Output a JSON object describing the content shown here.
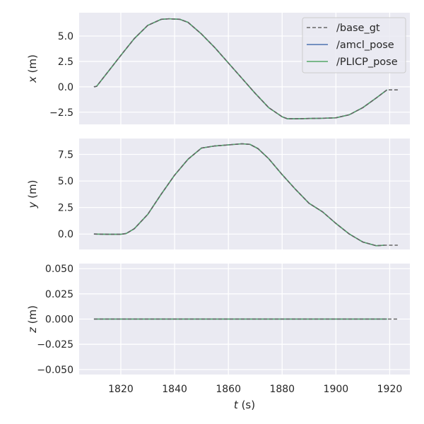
{
  "chart_data": [
    {
      "type": "line",
      "panel": "x",
      "ylabel_var": "x",
      "ylabel_unit": "(m)",
      "xlabel": "",
      "xlim": [
        1804.5,
        1927.5
      ],
      "ylim": [
        -3.7,
        7.3
      ],
      "yticks": [
        5.0,
        2.5,
        0.0,
        -2.5
      ],
      "ytick_labels": [
        "5.0",
        "2.5",
        "0.0",
        "−2.5"
      ],
      "xticks": [
        1820,
        1840,
        1860,
        1880,
        1900,
        1920
      ],
      "show_xtick_labels": false,
      "grid": true,
      "legend": {
        "location": "upper right"
      },
      "series": [
        {
          "name": "/base_gt",
          "color": "#666666",
          "dash": "dashed",
          "x": [
            1810,
            1811,
            1815,
            1820,
            1825,
            1830,
            1835,
            1838,
            1842,
            1845,
            1850,
            1855,
            1860,
            1865,
            1870,
            1875,
            1880,
            1882,
            1885,
            1890,
            1895,
            1900,
            1905,
            1910,
            1915,
            1919,
            1923
          ],
          "y": [
            0.0,
            0.05,
            1.4,
            3.1,
            4.75,
            6.05,
            6.65,
            6.7,
            6.65,
            6.35,
            5.2,
            3.85,
            2.35,
            0.85,
            -0.65,
            -2.05,
            -2.95,
            -3.15,
            -3.15,
            -3.12,
            -3.1,
            -3.05,
            -2.75,
            -2.05,
            -1.1,
            -0.3,
            -0.3
          ]
        },
        {
          "name": "/amcl_pose",
          "color": "#4c72b0",
          "dash": "solid",
          "x": [
            1810,
            1811,
            1815,
            1820,
            1825,
            1830,
            1835,
            1838,
            1842,
            1845,
            1850,
            1855,
            1860,
            1865,
            1870,
            1875,
            1880,
            1882,
            1885,
            1890,
            1895,
            1900,
            1905,
            1910,
            1915,
            1919
          ],
          "y": [
            0.0,
            0.05,
            1.4,
            3.1,
            4.75,
            6.05,
            6.65,
            6.7,
            6.65,
            6.35,
            5.2,
            3.85,
            2.35,
            0.85,
            -0.65,
            -2.05,
            -2.95,
            -3.15,
            -3.15,
            -3.12,
            -3.1,
            -3.05,
            -2.75,
            -2.05,
            -1.1,
            -0.3
          ]
        },
        {
          "name": "/PLICP_pose",
          "color": "#55a868",
          "dash": "solid",
          "x": [
            1810,
            1811,
            1815,
            1820,
            1825,
            1830,
            1835,
            1838,
            1842,
            1845,
            1850,
            1855,
            1860,
            1865,
            1870,
            1875,
            1880,
            1882,
            1885,
            1890,
            1895,
            1900,
            1905,
            1910,
            1915,
            1919
          ],
          "y": [
            0.0,
            0.05,
            1.4,
            3.1,
            4.75,
            6.05,
            6.65,
            6.7,
            6.65,
            6.35,
            5.2,
            3.85,
            2.35,
            0.85,
            -0.65,
            -2.05,
            -2.95,
            -3.15,
            -3.15,
            -3.12,
            -3.1,
            -3.05,
            -2.75,
            -2.05,
            -1.1,
            -0.3
          ]
        }
      ]
    },
    {
      "type": "line",
      "panel": "y",
      "ylabel_var": "y",
      "ylabel_unit": "(m)",
      "xlabel": "",
      "xlim": [
        1804.5,
        1927.5
      ],
      "ylim": [
        -1.45,
        9.0
      ],
      "yticks": [
        7.5,
        5.0,
        2.5,
        0.0
      ],
      "ytick_labels": [
        "7.5",
        "5.0",
        "2.5",
        "0.0"
      ],
      "xticks": [
        1820,
        1840,
        1860,
        1880,
        1900,
        1920
      ],
      "show_xtick_labels": false,
      "grid": true,
      "series": [
        {
          "name": "/base_gt",
          "color": "#666666",
          "dash": "dashed",
          "x": [
            1810,
            1815,
            1820,
            1822,
            1825,
            1830,
            1835,
            1840,
            1845,
            1850,
            1855,
            1860,
            1865,
            1868,
            1871,
            1875,
            1880,
            1885,
            1890,
            1895,
            1900,
            1905,
            1910,
            1915,
            1918,
            1923
          ],
          "y": [
            0.0,
            -0.02,
            -0.02,
            0.05,
            0.5,
            1.85,
            3.75,
            5.55,
            7.05,
            8.1,
            8.3,
            8.4,
            8.5,
            8.45,
            8.05,
            7.1,
            5.6,
            4.2,
            2.9,
            2.1,
            1.0,
            0.0,
            -0.75,
            -1.1,
            -1.05,
            -1.05
          ]
        },
        {
          "name": "/amcl_pose",
          "color": "#4c72b0",
          "dash": "solid",
          "x": [
            1810,
            1815,
            1820,
            1822,
            1825,
            1830,
            1835,
            1840,
            1845,
            1850,
            1855,
            1860,
            1865,
            1868,
            1871,
            1875,
            1880,
            1885,
            1890,
            1895,
            1900,
            1905,
            1910,
            1915,
            1918
          ],
          "y": [
            0.0,
            -0.02,
            -0.02,
            0.05,
            0.5,
            1.85,
            3.75,
            5.55,
            7.05,
            8.1,
            8.3,
            8.4,
            8.5,
            8.45,
            8.05,
            7.1,
            5.6,
            4.2,
            2.9,
            2.1,
            1.0,
            0.0,
            -0.75,
            -1.1,
            -1.05
          ]
        },
        {
          "name": "/PLICP_pose",
          "color": "#55a868",
          "dash": "solid",
          "x": [
            1810,
            1815,
            1820,
            1822,
            1825,
            1830,
            1835,
            1840,
            1845,
            1850,
            1855,
            1860,
            1865,
            1868,
            1871,
            1875,
            1880,
            1885,
            1890,
            1895,
            1900,
            1905,
            1910,
            1915,
            1918
          ],
          "y": [
            0.0,
            -0.02,
            -0.02,
            0.05,
            0.5,
            1.85,
            3.75,
            5.55,
            7.05,
            8.1,
            8.3,
            8.4,
            8.5,
            8.45,
            8.05,
            7.1,
            5.6,
            4.2,
            2.9,
            2.1,
            1.0,
            0.0,
            -0.75,
            -1.1,
            -1.05
          ]
        }
      ]
    },
    {
      "type": "line",
      "panel": "z",
      "ylabel_var": "z",
      "ylabel_unit": "(m)",
      "xlabel_var": "t",
      "xlabel_unit": "(s)",
      "xlim": [
        1804.5,
        1927.5
      ],
      "ylim": [
        -0.055,
        0.055
      ],
      "yticks": [
        0.05,
        0.025,
        0.0,
        -0.025,
        -0.05
      ],
      "ytick_labels": [
        "0.050",
        "0.025",
        "0.000",
        "−0.025",
        "−0.050"
      ],
      "xticks": [
        1820,
        1840,
        1860,
        1880,
        1900,
        1920
      ],
      "xtick_labels": [
        "1820",
        "1840",
        "1860",
        "1880",
        "1900",
        "1920"
      ],
      "show_xtick_labels": true,
      "grid": true,
      "series": [
        {
          "name": "/base_gt",
          "color": "#666666",
          "dash": "dashed",
          "x": [
            1810,
            1923
          ],
          "y": [
            0.0,
            0.0
          ]
        },
        {
          "name": "/amcl_pose",
          "color": "#4c72b0",
          "dash": "solid",
          "x": [
            1810,
            1919
          ],
          "y": [
            0.0,
            0.0
          ]
        },
        {
          "name": "/PLICP_pose",
          "color": "#55a868",
          "dash": "solid",
          "x": [
            1810,
            1919
          ],
          "y": [
            0.0,
            0.0
          ]
        }
      ]
    }
  ],
  "style": {
    "panel_background": "#eaeaf2",
    "grid_color": "#ffffff",
    "text_color": "#262626",
    "legend_background": "#eaeaf2",
    "legend_border": "#cccccc"
  }
}
